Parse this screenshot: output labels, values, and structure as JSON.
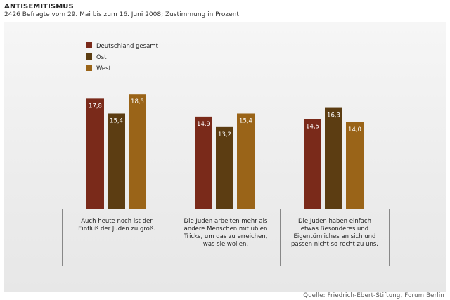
{
  "title": "ANTISEMITISMUS",
  "subtitle": "2426 Befragte vom 29. Mai bis zum 16. Juni 2008; Zustimmung in Prozent",
  "source": "Quelle: Friedrich-Ebert-Stiftung, Forum Berlin",
  "chart_data": {
    "type": "bar",
    "title": "ANTISEMITISMUS",
    "xlabel": "",
    "ylabel": "",
    "ylim": [
      0,
      20
    ],
    "legend_position": "top-left",
    "categories": [
      [
        "Auch heute noch ist der",
        "Einfluß der Juden zu groß."
      ],
      [
        "Die Juden arbeiten mehr als",
        "andere Menschen mit üblen",
        "Tricks, um das zu erreichen,",
        "was sie wollen."
      ],
      [
        "Die Juden haben einfach",
        "etwas Besonderes und",
        "Eigentümliches an sich und",
        "passen nicht so recht zu uns."
      ]
    ],
    "series": [
      {
        "name": "Deutschland gesamt",
        "color": "#7a2a1a",
        "values": [
          17.8,
          14.9,
          14.5
        ],
        "labels": [
          "17,8",
          "14,9",
          "14,5"
        ]
      },
      {
        "name": "Ost",
        "color": "#5c3d12",
        "values": [
          15.4,
          13.2,
          16.3
        ],
        "labels": [
          "15,4",
          "13,2",
          "16,3"
        ]
      },
      {
        "name": "West",
        "color": "#9a6418",
        "values": [
          18.5,
          15.4,
          14.0
        ],
        "labels": [
          "18,5",
          "15,4",
          "14,0"
        ]
      }
    ]
  }
}
